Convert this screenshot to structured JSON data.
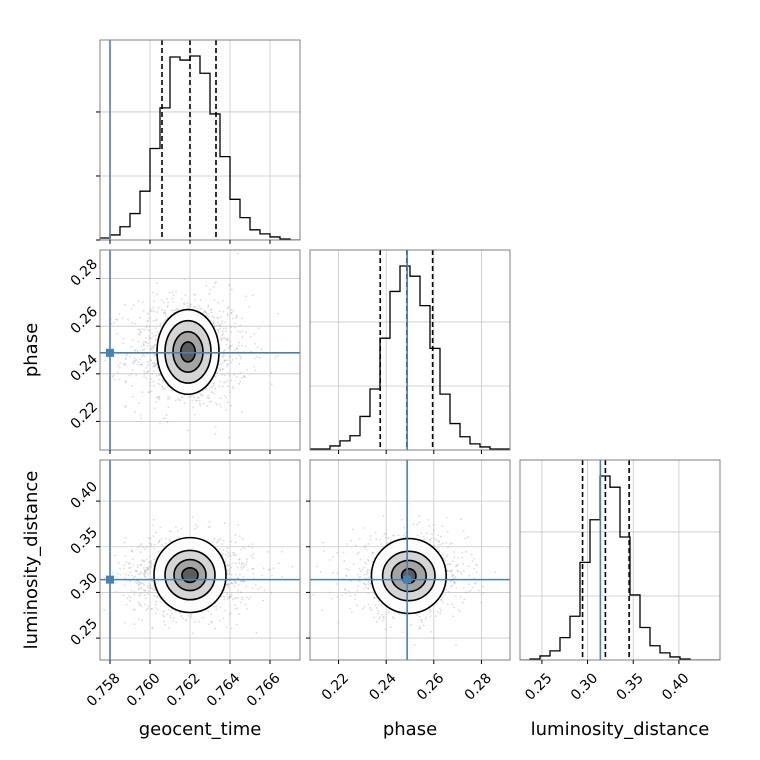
{
  "chart_data": {
    "type": "corner",
    "parameters": [
      "geocent_time",
      "phase",
      "luminosity_distance"
    ],
    "truths": [
      0.758,
      0.2488,
      0.314
    ],
    "truth_color": "#4682b4",
    "ranges": [
      [
        0.7575,
        0.7675
      ],
      [
        0.208,
        0.292
      ],
      [
        0.226,
        0.445
      ]
    ],
    "ticks": [
      [
        0.758,
        0.76,
        0.762,
        0.764,
        0.766
      ],
      [
        0.22,
        0.24,
        0.26,
        0.28
      ],
      [
        0.25,
        0.3,
        0.35,
        0.4
      ]
    ],
    "tick_labels": [
      [
        "0.758",
        "0.760",
        "0.762",
        "0.764",
        "0.766"
      ],
      [
        "0.22",
        "0.24",
        "0.26",
        "0.28"
      ],
      [
        "0.25",
        "0.30",
        "0.35",
        "0.40"
      ]
    ],
    "quantiles": [
      [
        0.7606,
        0.762,
        0.7633
      ],
      [
        0.2375,
        0.2487,
        0.2595
      ],
      [
        0.2945,
        0.3195,
        0.3455
      ]
    ],
    "histograms": [
      {
        "bin_edges": [
          0.7575,
          0.758,
          0.7585,
          0.759,
          0.7595,
          0.76,
          0.7605,
          0.761,
          0.7615,
          0.762,
          0.7625,
          0.763,
          0.7635,
          0.764,
          0.7645,
          0.765,
          0.7655,
          0.766,
          0.7665,
          0.767,
          0.7675
        ],
        "counts": [
          2,
          5,
          13,
          26,
          48,
          90,
          130,
          180,
          177,
          181,
          164,
          124,
          82,
          40,
          22,
          10,
          6,
          3,
          1,
          0
        ]
      },
      {
        "bin_edges": [
          0.208,
          0.2122,
          0.2164,
          0.2206,
          0.2248,
          0.229,
          0.2332,
          0.2374,
          0.2416,
          0.2458,
          0.25,
          0.2542,
          0.2584,
          0.2626,
          0.2668,
          0.271,
          0.2752,
          0.2794,
          0.2836,
          0.2878,
          0.292
        ],
        "counts": [
          1,
          1,
          4,
          9,
          14,
          33,
          60,
          110,
          156,
          181,
          171,
          142,
          100,
          55,
          26,
          13,
          6,
          3,
          1,
          1
        ]
      },
      {
        "bin_edges": [
          0.226,
          0.23695,
          0.2479,
          0.25885,
          0.2698,
          0.28075,
          0.2917,
          0.30265,
          0.3136,
          0.32455,
          0.3355,
          0.34645,
          0.3574,
          0.36835,
          0.3793,
          0.39025,
          0.4012,
          0.41215,
          0.4231,
          0.43405,
          0.445
        ],
        "counts": [
          0,
          1,
          4,
          9,
          22,
          43,
          96,
          138,
          181,
          170,
          121,
          64,
          32,
          14,
          7,
          3,
          1,
          0,
          0,
          0
        ]
      }
    ],
    "pairs": [
      {
        "x_param": "geocent_time",
        "y_param": "phase",
        "center": [
          0.7619,
          0.2492
        ],
        "contour_radii": [
          [
            0.00036,
            0.0042
          ],
          [
            0.00075,
            0.0085
          ],
          [
            0.00115,
            0.0131
          ],
          [
            0.00155,
            0.0178
          ]
        ],
        "sample_spread": [
          0.0015,
          0.012
        ]
      },
      {
        "x_param": "geocent_time",
        "y_param": "luminosity_distance",
        "center": [
          0.762,
          0.319
        ],
        "contour_radii": [
          [
            0.0004,
            0.008
          ],
          [
            0.0008,
            0.017
          ],
          [
            0.00125,
            0.027
          ],
          [
            0.0018,
            0.041
          ]
        ],
        "sample_spread": [
          0.0016,
          0.022
        ]
      },
      {
        "x_param": "phase",
        "y_param": "luminosity_distance",
        "center": [
          0.2495,
          0.318
        ],
        "contour_radii": [
          [
            0.003,
            0.008
          ],
          [
            0.0073,
            0.017
          ],
          [
            0.011,
            0.027
          ],
          [
            0.0157,
            0.041
          ]
        ],
        "sample_spread": [
          0.012,
          0.022
        ]
      }
    ],
    "grid": true
  }
}
